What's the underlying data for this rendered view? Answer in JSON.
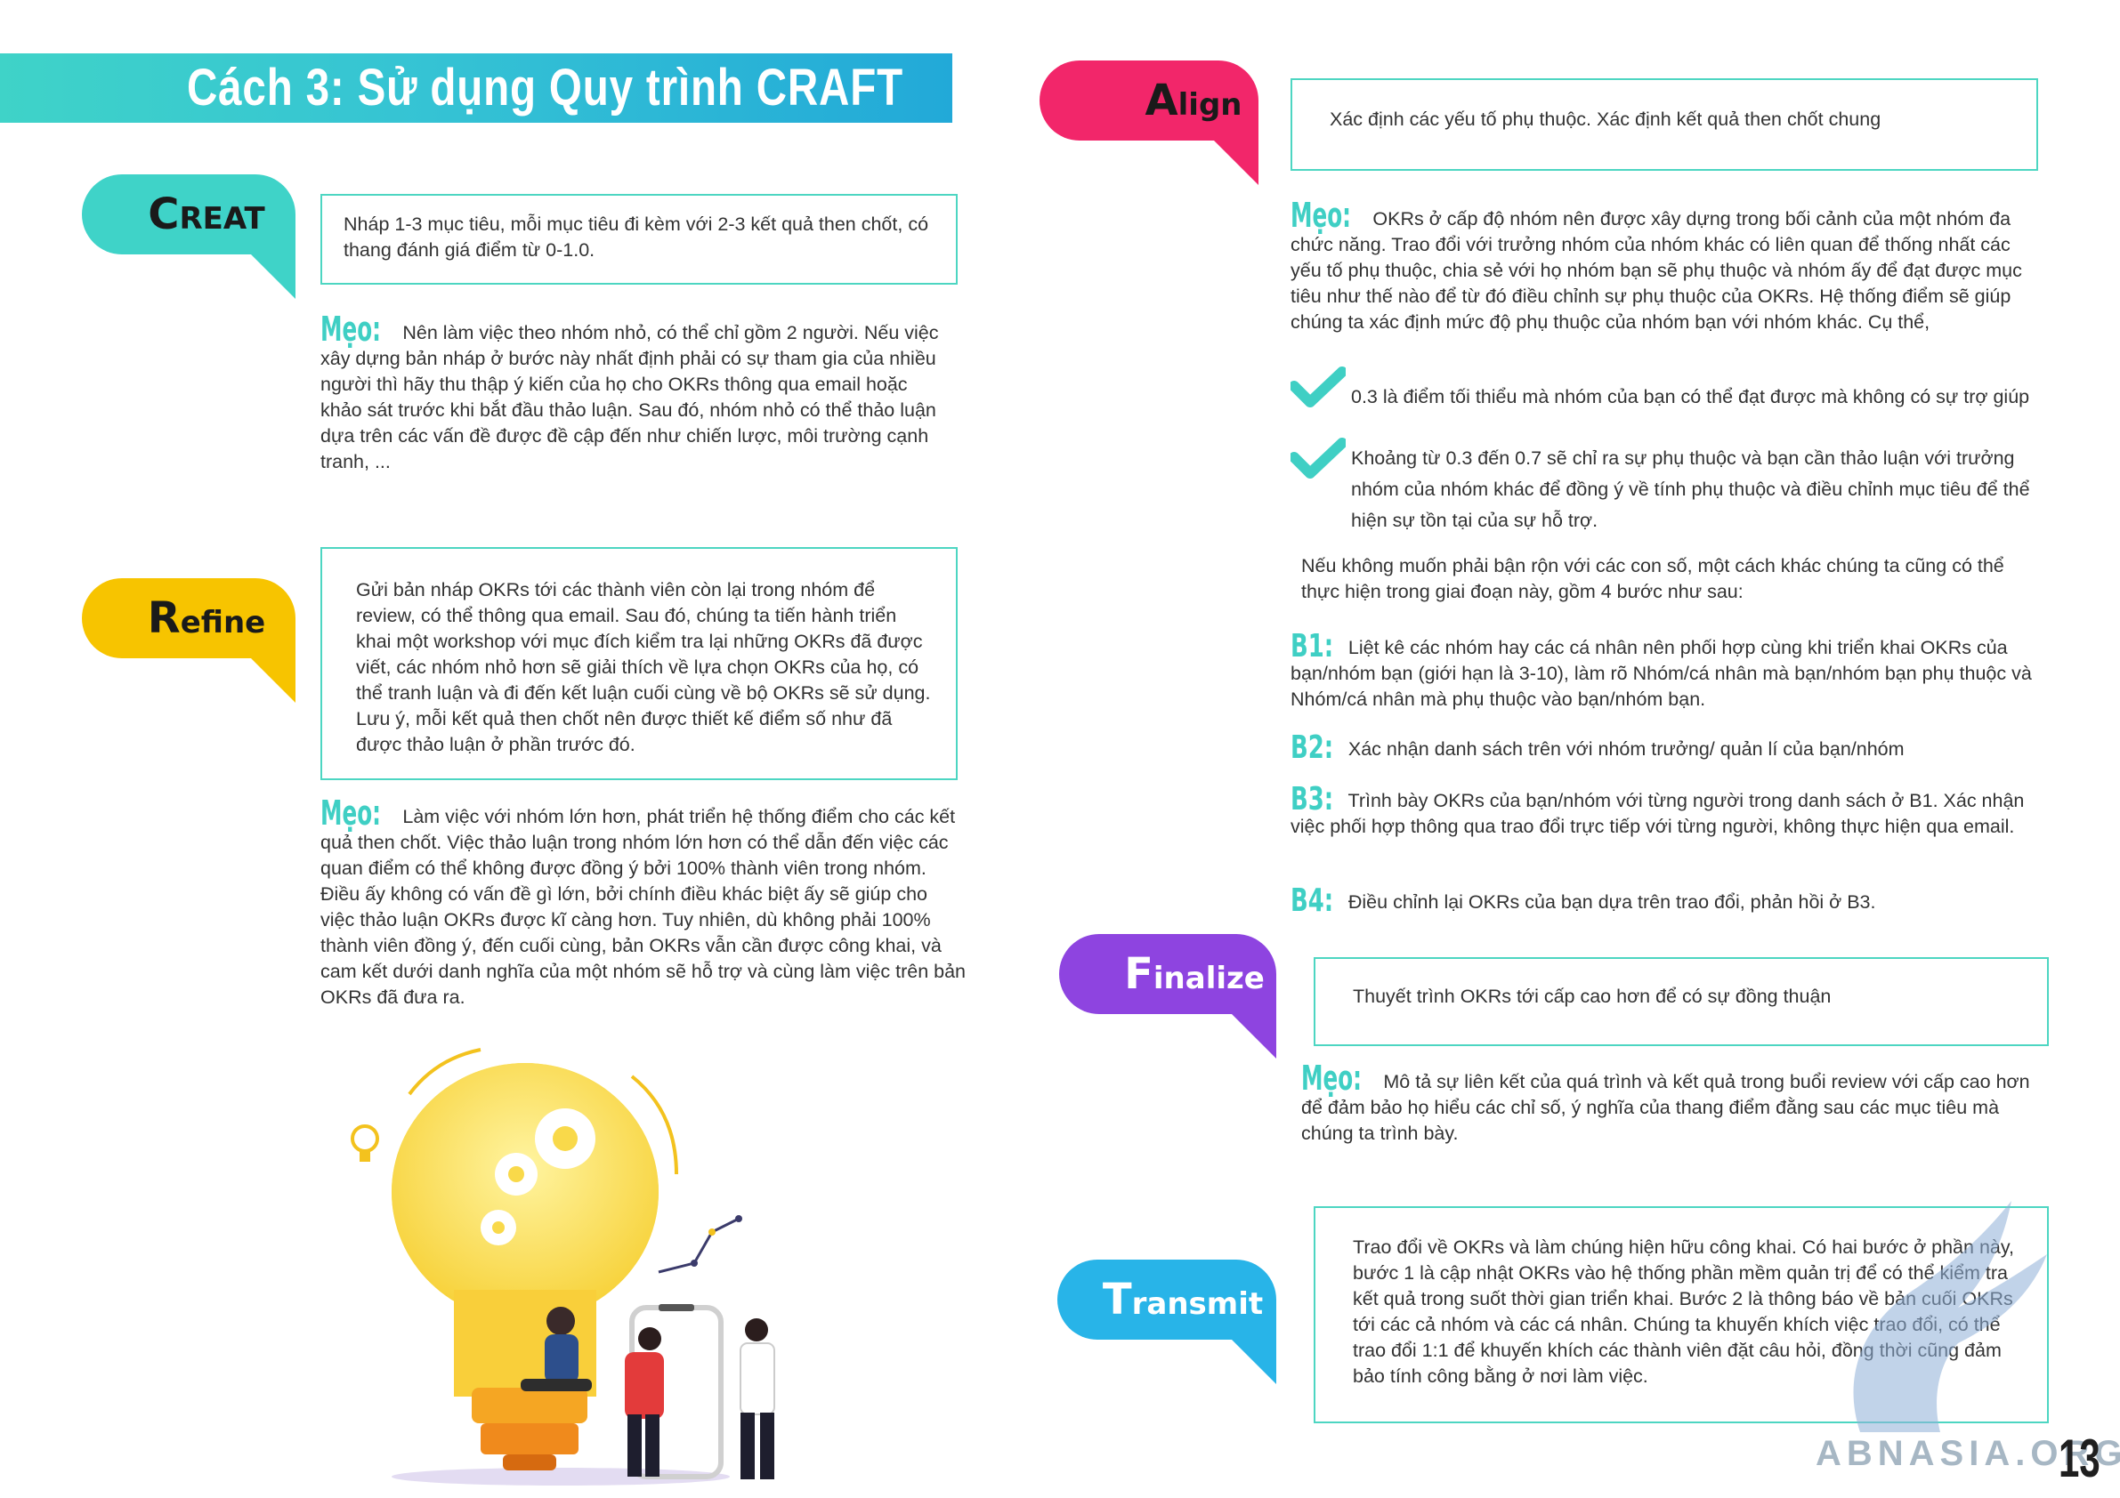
{
  "title": "Cách 3: Sử dụng Quy trình CRAFT",
  "colors": {
    "teal": "#3fd3c8",
    "yellow": "#f7c400",
    "pink": "#f2266a",
    "purple": "#8e44e0",
    "blue": "#28b4e8"
  },
  "create": {
    "initial": "C",
    "rest": "REAT",
    "box": "Nháp 1-3 mục tiêu, mỗi mục tiêu đi kèm với 2-3 kết quả then chốt, có thang đánh giá điểm từ 0-1.0.",
    "tip_word": "Mẹo:",
    "tip": "Nên làm việc theo nhóm nhỏ, có thể chỉ gồm 2 người. Nếu việc xây dựng bản nháp ở bước này nhất định phải có sự tham gia của nhiều người thì hãy thu thập ý kiến của họ cho OKRs thông qua email hoặc khảo sát trước khi bắt đầu thảo luận. Sau đó, nhóm nhỏ có thể thảo luận dựa trên các vấn đề được đề cập đến như chiến lược, môi trường cạnh tranh, ..."
  },
  "refine": {
    "initial": "R",
    "rest": "efine",
    "box": "Gửi bản nháp OKRs tới các thành viên còn lại trong nhóm để review, có thể thông qua email. Sau đó, chúng ta tiến hành triển khai một workshop với mục đích kiểm tra lại những OKRs đã được viết, các nhóm nhỏ hơn sẽ giải thích về lựa chọn OKRs của họ, có thể tranh luận và đi đến kết luận cuối cùng về bộ OKRs sẽ sử dụng. Lưu ý, mỗi kết quả then chốt nên được thiết kế điểm số như đã được thảo luận ở phần trước đó.",
    "tip_word": "Mẹo:",
    "tip": "Làm việc với nhóm lớn hơn, phát triển hệ thống điểm cho các kết quả then chốt. Việc thảo luận trong nhóm lớn hơn có thể dẫn đến việc các quan điểm có thể không được đồng ý bởi 100% thành viên trong nhóm. Điều ấy không có vấn đề gì lớn, bởi chính điều khác biệt ấy sẽ giúp cho việc thảo luận OKRs được kĩ càng hơn. Tuy nhiên, dù không phải 100% thành viên đồng ý, đến cuối cùng, bản OKRs vẫn cần được công khai, và cam kết dưới danh nghĩa của một nhóm sẽ hỗ trợ và cùng làm việc trên bản OKRs đã đưa ra."
  },
  "align": {
    "initial": "A",
    "rest": "lign",
    "box": "Xác định các yếu tố phụ thuộc. Xác định kết quả then chốt chung",
    "tip_word": "Mẹo:",
    "tip": "OKRs ở cấp độ nhóm nên được xây dựng trong bối cảnh của một nhóm đa chức năng. Trao đổi với trưởng nhóm của nhóm khác có liên quan để thống nhất các yếu tố phụ thuộc, chia sẻ với họ nhóm bạn sẽ phụ thuộc và nhóm ấy để đạt được mục tiêu như thế nào để từ đó điều chỉnh sự phụ thuộc của OKRs. Hệ thống điểm sẽ giúp chúng ta xác định mức độ phụ thuộc của nhóm bạn với nhóm khác. Cụ thể,",
    "check1": "0.3 là điểm tối thiểu mà nhóm của bạn có thể đạt được mà không có sự trợ giúp",
    "check2": "Khoảng từ 0.3 đến 0.7 sẽ chỉ ra sự phụ thuộc và bạn cần thảo luận với trưởng nhóm của nhóm khác để đồng ý về tính phụ thuộc và điều chỉnh mục tiêu để thể hiện sự tồn tại của sự hỗ trợ.",
    "intro": "Nếu không muốn phải bận rộn với các con số, một cách khác chúng ta cũng có thể thực hiện trong giai đoạn này, gồm 4 bước như sau:",
    "steps": [
      {
        "label": "B1:",
        "text": "Liệt kê các nhóm hay các cá nhân nên phối hợp cùng khi triển khai OKRs của bạn/nhóm bạn (giới hạn là 3-10), làm rõ Nhóm/cá nhân mà bạn/nhóm bạn phụ thuộc và Nhóm/cá nhân mà phụ thuộc vào bạn/nhóm bạn."
      },
      {
        "label": "B2:",
        "text": "Xác nhận danh sách trên với nhóm trưởng/ quản lí của bạn/nhóm"
      },
      {
        "label": "B3:",
        "text": "Trình bày OKRs của bạn/nhóm với từng người trong danh sách ở B1. Xác nhận việc phối hợp thông qua trao đổi trực tiếp với từng người, không thực hiện qua email."
      },
      {
        "label": "B4:",
        "text": "Điều chỉnh lại OKRs của bạn dựa trên trao đổi, phản hồi ở B3."
      }
    ]
  },
  "finalize": {
    "initial": "F",
    "rest": "inalize",
    "box": "Thuyết trình OKRs tới cấp cao hơn để có sự đồng thuận",
    "tip_word": "Mẹo:",
    "tip": "Mô tả sự liên kết của quá trình và kết quả trong buổi review với cấp cao hơn để đảm bảo họ hiểu các chỉ số, ý nghĩa của thang điểm đằng sau các mục tiêu mà chúng ta trình bày."
  },
  "transmit": {
    "initial": "T",
    "rest": "ransmit",
    "box": "Trao đổi về OKRs và làm chúng hiện hữu công khai. Có hai bước ở phần này, bước 1 là cập nhật OKRs vào hệ thống phần mềm quản trị để có thể kiểm tra kết quả trong suốt thời gian triển khai. Bước 2 là thông báo về bản cuối OKRs tới các cả nhóm và các cá nhân. Chúng ta khuyến khích việc trao đổi, có thể trao đổi 1:1 để khuyến khích các thành viên đặt câu hỏi, đồng thời cũng đảm bảo tính công bằng ở nơi làm việc."
  },
  "page_number": "13",
  "watermark": "ABNASIA.ORG"
}
